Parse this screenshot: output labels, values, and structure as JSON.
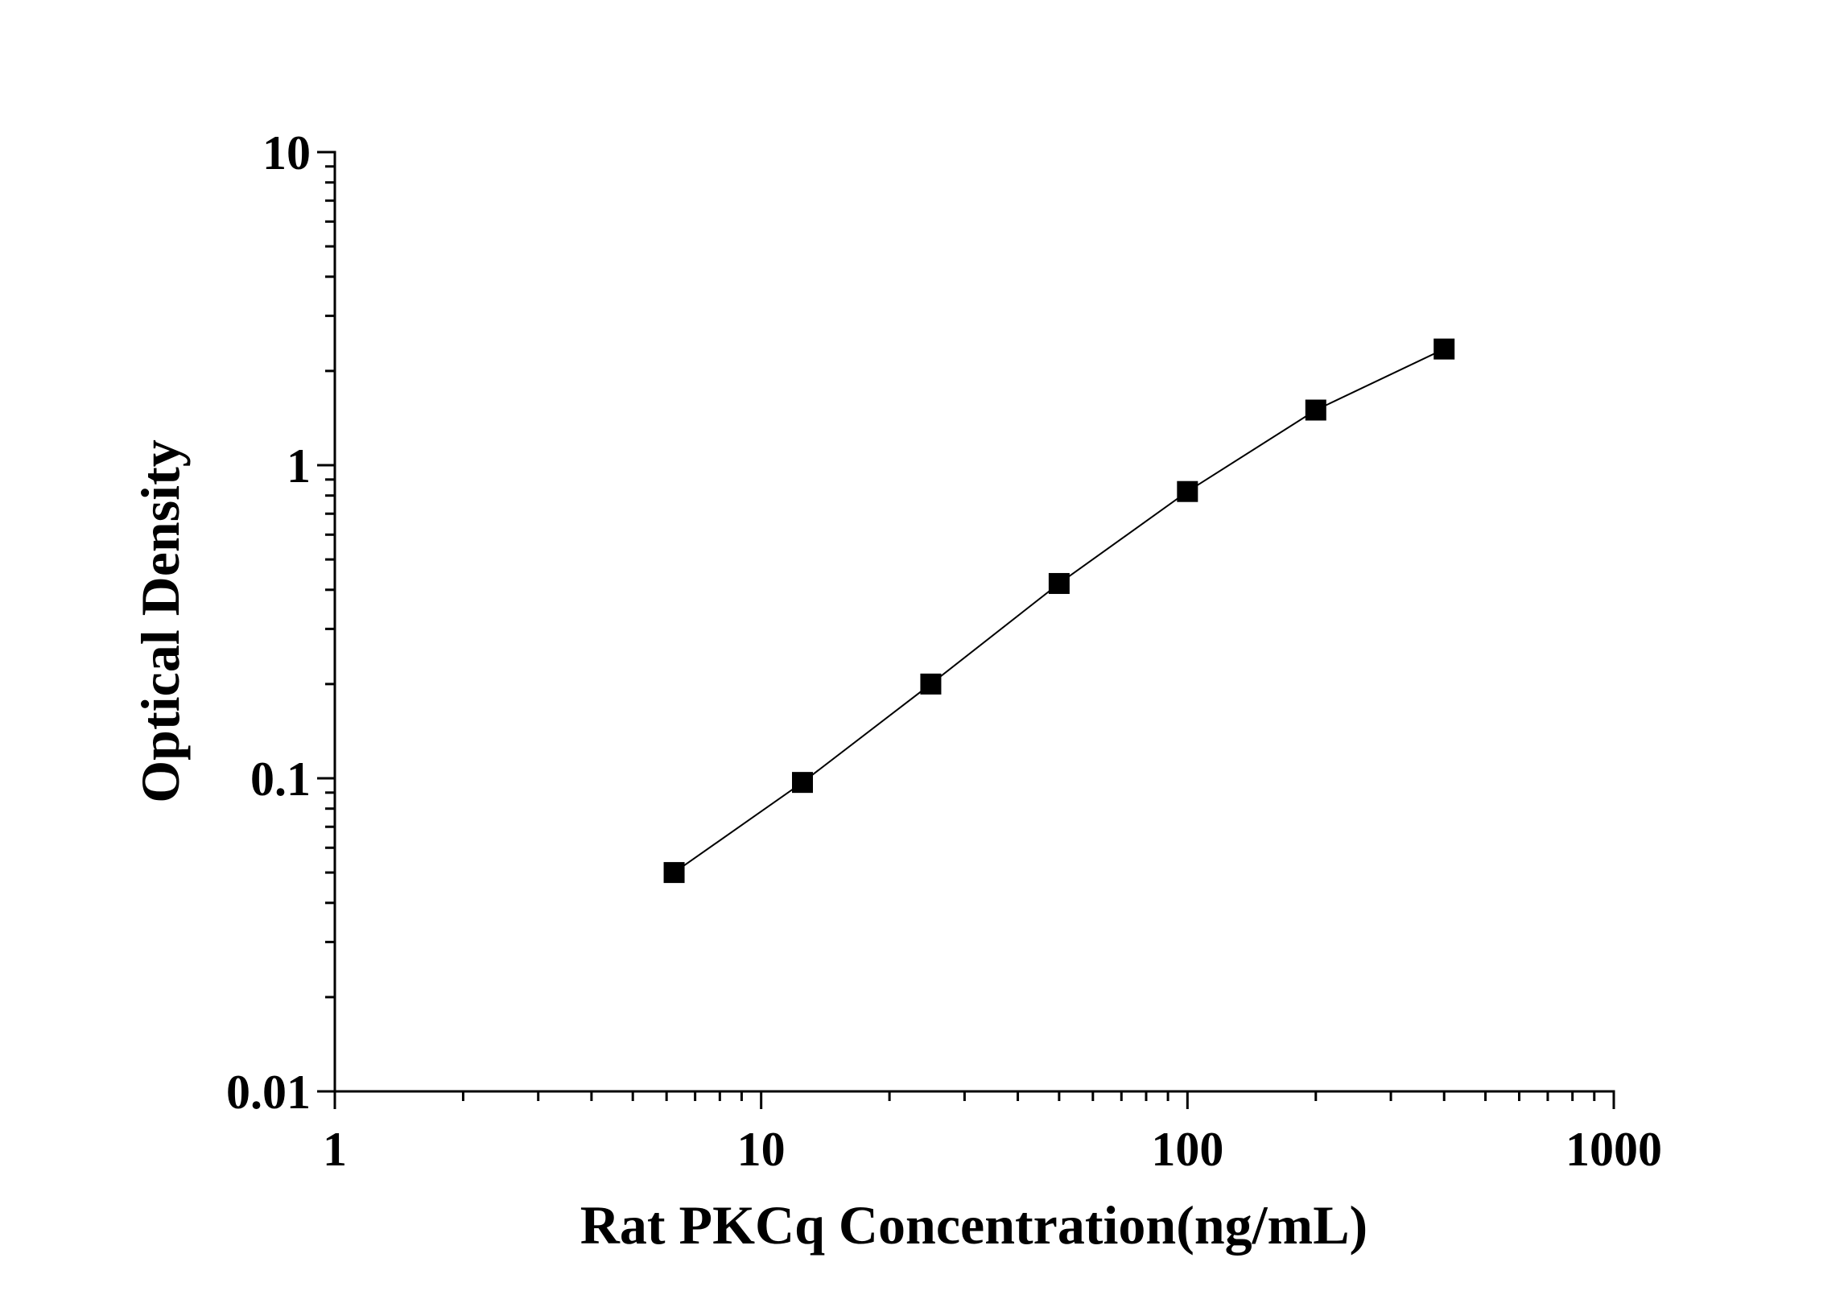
{
  "chart_data": {
    "type": "line",
    "x_label": "Rat PKCq Concentration(ng/mL)",
    "y_label": "Optical Density",
    "x": [
      6.25,
      12.5,
      25,
      50,
      100,
      200,
      400
    ],
    "series": [
      {
        "name": "Optical Density",
        "color": "#000000",
        "values": [
          0.05,
          0.097,
          0.2,
          0.419,
          0.824,
          1.5,
          2.35
        ]
      }
    ],
    "xlim": [
      1,
      1000
    ],
    "ylim": [
      0.01,
      10
    ],
    "xticks": [
      1,
      10,
      100,
      1000
    ],
    "yticks": [
      0.01,
      0.1,
      1,
      10
    ],
    "xscale": "log",
    "yscale": "log",
    "grid": false
  }
}
